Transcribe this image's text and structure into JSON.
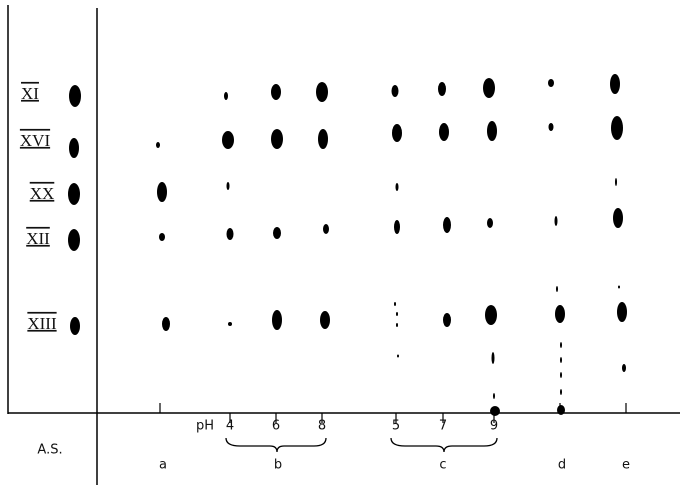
{
  "figure": {
    "row_labels": [
      "XI",
      "XVI",
      "XX",
      "XII",
      "XIII"
    ],
    "standard_label": "A.S.",
    "ph_label": "pH",
    "ph_values": [
      "4",
      "6",
      "8",
      "5",
      "7",
      "9"
    ],
    "lanes": [
      "a",
      "b",
      "c",
      "d",
      "e"
    ]
  }
}
